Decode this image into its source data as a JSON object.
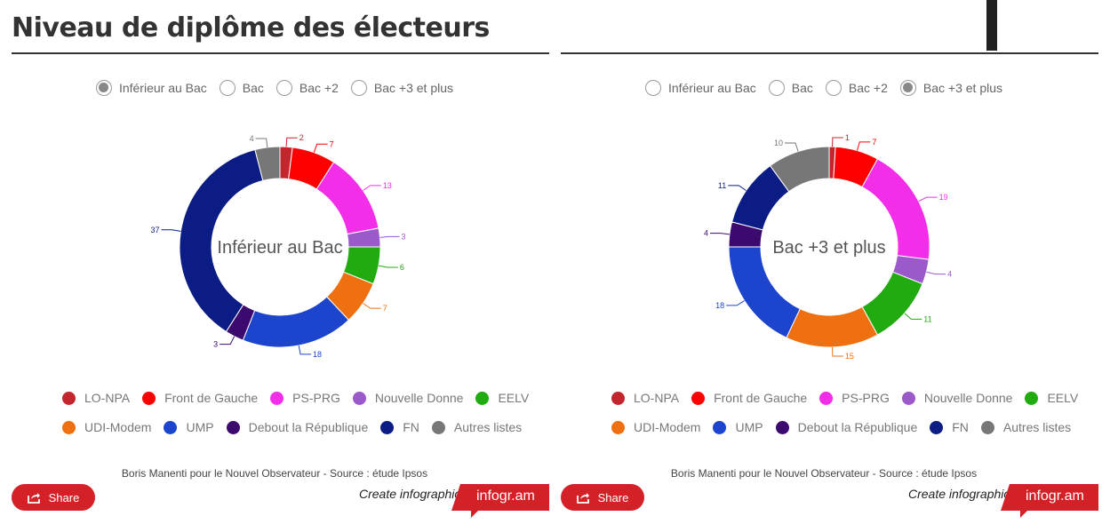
{
  "title": "Niveau de diplôme des électeurs",
  "radio_options": [
    "Inférieur au Bac",
    "Bac",
    "Bac +2",
    "Bac +3 et plus"
  ],
  "legend_row1": [
    {
      "label": "LO-NPA",
      "color": "#c1272d"
    },
    {
      "label": "Front de Gauche",
      "color": "#ff0000"
    },
    {
      "label": "PS-PRG",
      "color": "#f22ee9"
    },
    {
      "label": "Nouvelle Donne",
      "color": "#9b59c9"
    },
    {
      "label": "EELV",
      "color": "#22aa11"
    }
  ],
  "legend_row2": [
    {
      "label": "UDI-Modem",
      "color": "#ee7011"
    },
    {
      "label": "UMP",
      "color": "#1c44cc"
    },
    {
      "label": "Debout la République",
      "color": "#3c0a6e"
    },
    {
      "label": "FN",
      "color": "#0b1c84"
    },
    {
      "label": "Autres listes",
      "color": "#777777"
    }
  ],
  "source": "Boris Manenti pour le Nouvel Observateur - Source : étude Ipsos",
  "share_label": "Share",
  "create_label": "Create infographics",
  "brand_label": "infogr.am",
  "chart_data": [
    {
      "type": "pie",
      "selected_option": "Inférieur au Bac",
      "center_label": "Inférieur au Bac",
      "categories": [
        "LO-NPA",
        "Front de Gauche",
        "PS-PRG",
        "Nouvelle Donne",
        "EELV",
        "UDI-Modem",
        "UMP",
        "Debout la République",
        "FN",
        "Autres listes"
      ],
      "values": [
        2,
        7,
        13,
        3,
        6,
        7,
        18,
        3,
        37,
        4
      ],
      "colors": [
        "#c1272d",
        "#ff0000",
        "#f22ee9",
        "#9b59c9",
        "#22aa11",
        "#ee7011",
        "#1c44cc",
        "#3c0a6e",
        "#0b1c84",
        "#777777"
      ]
    },
    {
      "type": "pie",
      "selected_option": "Bac +3 et plus",
      "center_label": "Bac +3 et plus",
      "categories": [
        "LO-NPA",
        "Front de Gauche",
        "PS-PRG",
        "Nouvelle Donne",
        "EELV",
        "UDI-Modem",
        "UMP",
        "Debout la République",
        "FN",
        "Autres listes"
      ],
      "values": [
        1,
        7,
        19,
        4,
        11,
        15,
        18,
        4,
        11,
        10
      ],
      "colors": [
        "#c1272d",
        "#ff0000",
        "#f22ee9",
        "#9b59c9",
        "#22aa11",
        "#ee7011",
        "#1c44cc",
        "#3c0a6e",
        "#0b1c84",
        "#777777"
      ]
    }
  ]
}
